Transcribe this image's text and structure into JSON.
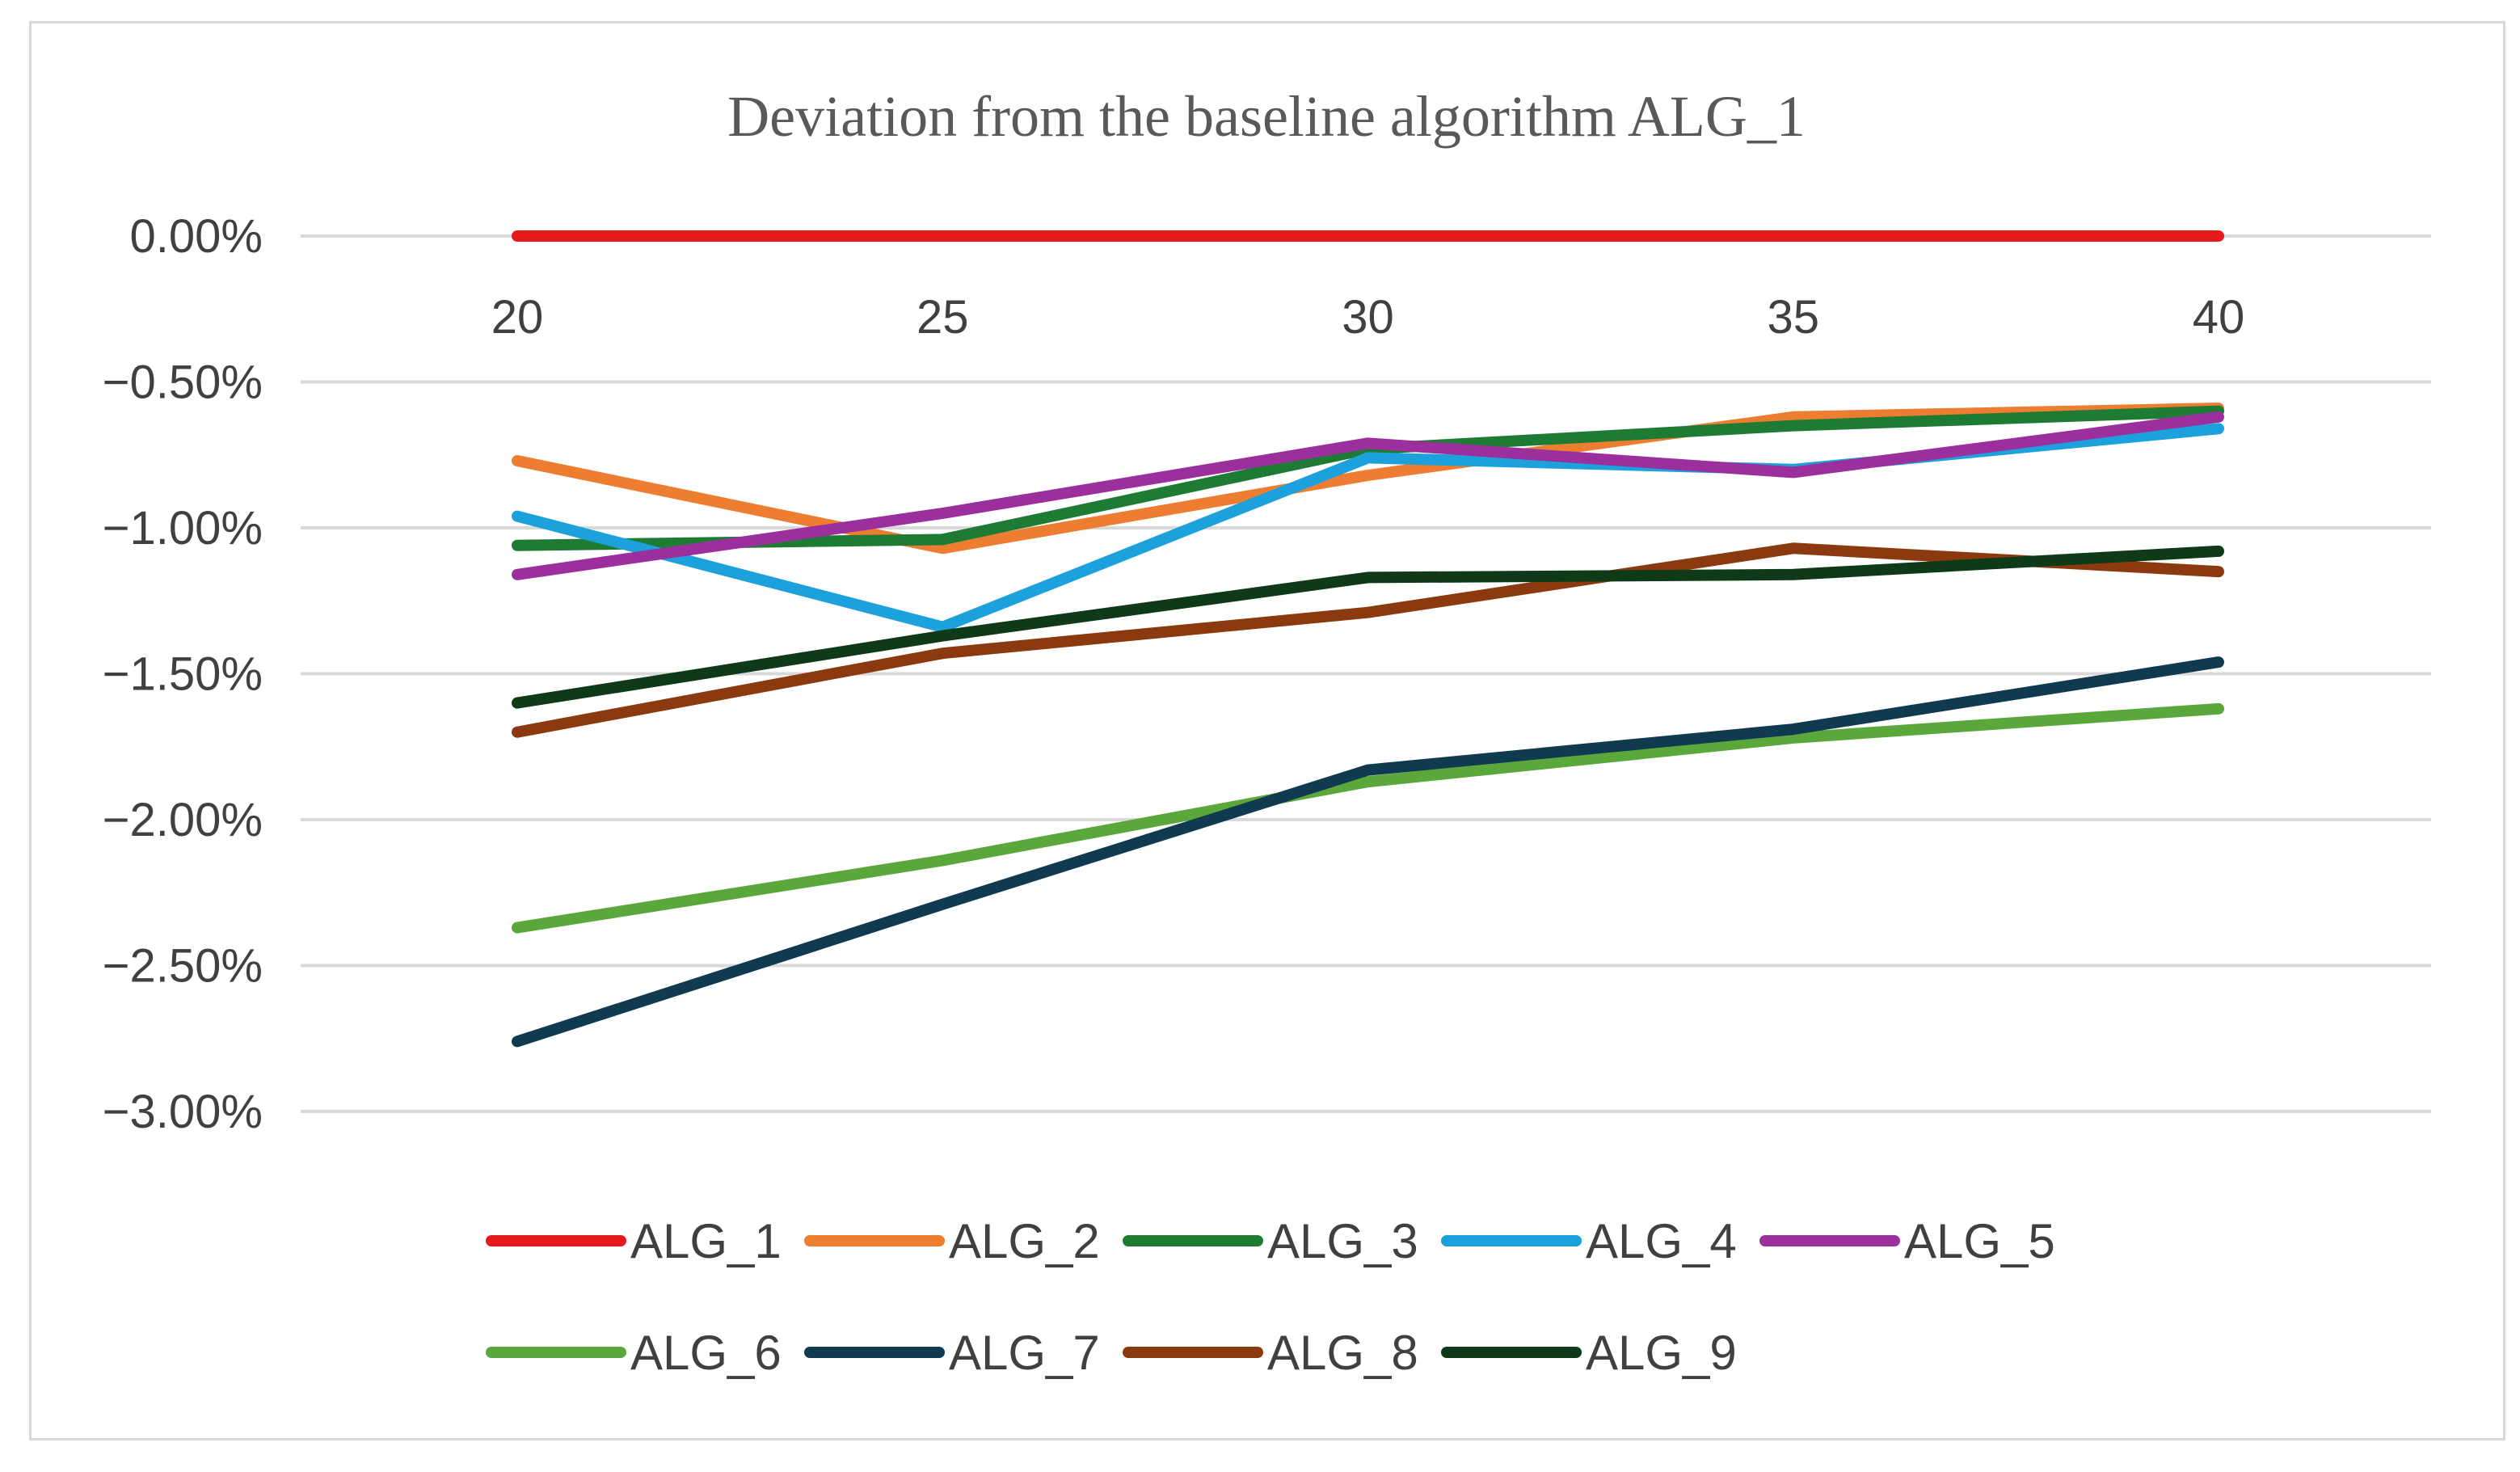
{
  "chart_data": {
    "type": "line",
    "title": "Deviation from the baseline algorithm ALG_1",
    "xlabel": "",
    "ylabel": "",
    "categories": [
      "20",
      "25",
      "30",
      "35",
      "40"
    ],
    "ylim": [
      -3.0,
      0.0
    ],
    "yticks": [
      0.0,
      -0.5,
      -1.0,
      -1.5,
      -2.0,
      -2.5,
      -3.0
    ],
    "ytick_labels": [
      "0.00%",
      "−0.50%",
      "−1.00%",
      "−1.50%",
      "−2.00%",
      "−2.50%",
      "−3.00%"
    ],
    "grid": true,
    "legend_position": "bottom",
    "series": [
      {
        "name": "ALG_1",
        "color": "#e41a1c",
        "values": [
          0.0,
          0.0,
          0.0,
          0.0,
          0.0
        ]
      },
      {
        "name": "ALG_2",
        "color": "#ed7d31",
        "values": [
          -0.77,
          -1.07,
          -0.82,
          -0.62,
          -0.59
        ]
      },
      {
        "name": "ALG_3",
        "color": "#1e7b34",
        "values": [
          -1.06,
          -1.04,
          -0.73,
          -0.65,
          -0.6
        ]
      },
      {
        "name": "ALG_4",
        "color": "#1da1dc",
        "values": [
          -0.96,
          -1.34,
          -0.76,
          -0.8,
          -0.66
        ]
      },
      {
        "name": "ALG_5",
        "color": "#9b2f9e",
        "values": [
          -1.16,
          -0.95,
          -0.71,
          -0.81,
          -0.62
        ]
      },
      {
        "name": "ALG_6",
        "color": "#5aa83c",
        "values": [
          -2.37,
          -2.14,
          -1.87,
          -1.72,
          -1.62
        ]
      },
      {
        "name": "ALG_7",
        "color": "#0f3a4f",
        "values": [
          -2.76,
          -2.29,
          -1.83,
          -1.69,
          -1.46
        ]
      },
      {
        "name": "ALG_8",
        "color": "#8b3a10",
        "values": [
          -1.7,
          -1.43,
          -1.29,
          -1.07,
          -1.15
        ]
      },
      {
        "name": "ALG_9",
        "color": "#0e3a17",
        "values": [
          -1.6,
          -1.37,
          -1.17,
          -1.16,
          -1.08
        ]
      }
    ]
  }
}
